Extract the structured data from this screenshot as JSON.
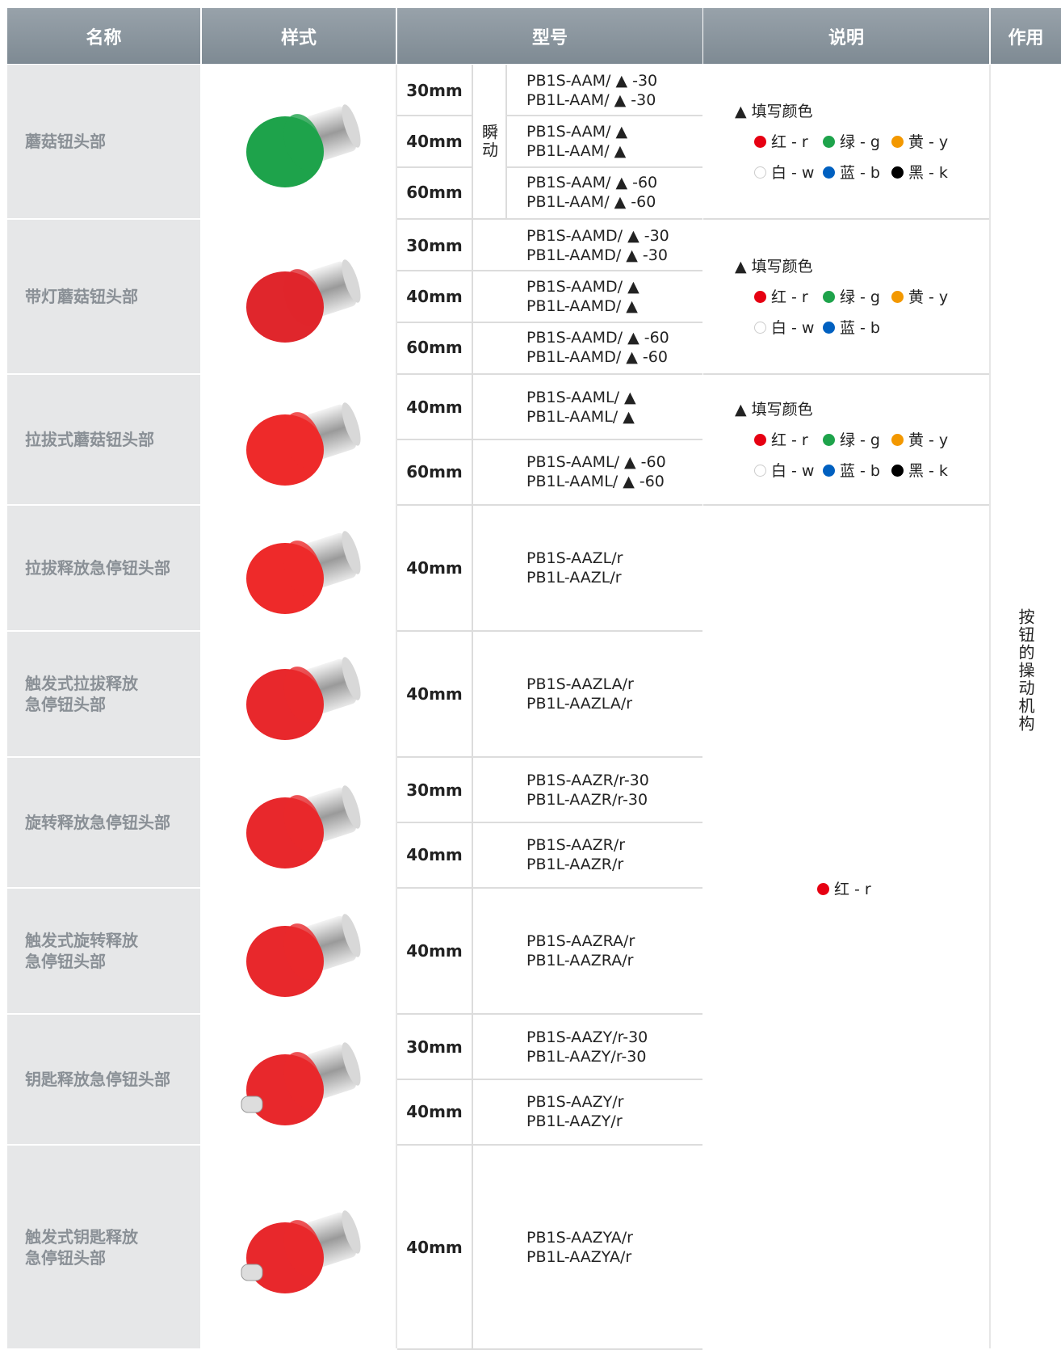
{
  "header": [
    "名称",
    "样式",
    "型号",
    "说明",
    "作用"
  ],
  "groups": [
    {
      "name": "蘑菇钮头部",
      "image_color": "#1ea34b",
      "mode": "瞬动",
      "variants": [
        {
          "size": "30mm",
          "models": [
            "PB1S-AAM/ ▲ -30",
            "PB1L-AAM/ ▲ -30"
          ]
        },
        {
          "size": "40mm",
          "models": [
            "PB1S-AAM/ ▲",
            "PB1L-AAM/ ▲"
          ]
        },
        {
          "size": "60mm",
          "models": [
            "PB1S-AAM/ ▲ -60",
            "PB1L-AAM/ ▲ -60"
          ]
        }
      ],
      "note": {
        "title": "▲ 填写颜色",
        "colors": [
          [
            {
              "color": "#e60012",
              "label": "红 - r"
            },
            {
              "color": "#1ea34b",
              "label": "绿 - g"
            },
            {
              "color": "#f39800",
              "label": "黄 - y"
            }
          ],
          [
            {
              "color": "#ffffff",
              "label": "白 - w"
            },
            {
              "color": "#0060c0",
              "label": "蓝 - b"
            },
            {
              "color": "#000000",
              "label": "黑 - k"
            }
          ]
        ]
      }
    },
    {
      "name": "带灯蘑菇钮头部",
      "image_color": "#e0262c",
      "variants": [
        {
          "size": "30mm",
          "models": [
            "PB1S-AAMD/ ▲ -30",
            "PB1L-AAMD/ ▲ -30"
          ]
        },
        {
          "size": "40mm",
          "models": [
            "PB1S-AAMD/ ▲",
            "PB1L-AAMD/ ▲"
          ]
        },
        {
          "size": "60mm",
          "models": [
            "PB1S-AAMD/ ▲ -60",
            "PB1L-AAMD/ ▲ -60"
          ]
        }
      ],
      "note": {
        "title": "▲ 填写颜色",
        "colors": [
          [
            {
              "color": "#e60012",
              "label": "红 - r"
            },
            {
              "color": "#1ea34b",
              "label": "绿 - g"
            },
            {
              "color": "#f39800",
              "label": "黄 - y"
            }
          ],
          [
            {
              "color": "#ffffff",
              "label": "白 - w"
            },
            {
              "color": "#0060c0",
              "label": "蓝 - b"
            }
          ]
        ]
      }
    },
    {
      "name": "拉拔式蘑菇钮头部",
      "image_color": "#ee2a2a",
      "variants": [
        {
          "size": "40mm",
          "models": [
            "PB1S-AAML/ ▲",
            "PB1L-AAML/ ▲"
          ]
        },
        {
          "size": "60mm",
          "models": [
            "PB1S-AAML/ ▲ -60",
            "PB1L-AAML/ ▲ -60"
          ]
        }
      ],
      "note": {
        "title": "▲ 填写颜色",
        "colors": [
          [
            {
              "color": "#e60012",
              "label": "红 - r"
            },
            {
              "color": "#1ea34b",
              "label": "绿 - g"
            },
            {
              "color": "#f39800",
              "label": "黄 - y"
            }
          ],
          [
            {
              "color": "#ffffff",
              "label": "白 - w"
            },
            {
              "color": "#0060c0",
              "label": "蓝 - b"
            },
            {
              "color": "#000000",
              "label": "黑 - k"
            }
          ]
        ]
      }
    },
    {
      "name": "拉拔释放急停钮头部",
      "image_color": "#ee2a2a",
      "variants": [
        {
          "size": "40mm",
          "models": [
            "PB1S-AAZL/r",
            "PB1L-AAZL/r"
          ]
        }
      ]
    },
    {
      "name": "触发式拉拔释放\n急停钮头部",
      "image_color": "#e8282c",
      "variants": [
        {
          "size": "40mm",
          "models": [
            "PB1S-AAZLA/r",
            "PB1L-AAZLA/r"
          ]
        }
      ]
    },
    {
      "name": "旋转释放急停钮头部",
      "image_color": "#e8282c",
      "variants": [
        {
          "size": "30mm",
          "models": [
            "PB1S-AAZR/r-30",
            "PB1L-AAZR/r-30"
          ]
        },
        {
          "size": "40mm",
          "models": [
            "PB1S-AAZR/r",
            "PB1L-AAZR/r"
          ]
        }
      ]
    },
    {
      "name": "触发式旋转释放\n急停钮头部",
      "image_color": "#e8282c",
      "variants": [
        {
          "size": "40mm",
          "models": [
            "PB1S-AAZRA/r",
            "PB1L-AAZRA/r"
          ]
        }
      ]
    },
    {
      "name": "钥匙释放急停钮头部",
      "image_color": "#e8282c",
      "variants": [
        {
          "size": "30mm",
          "models": [
            "PB1S-AAZY/r-30",
            "PB1L-AAZY/r-30"
          ]
        },
        {
          "size": "40mm",
          "models": [
            "PB1S-AAZY/r",
            "PB1L-AAZY/r"
          ]
        }
      ]
    },
    {
      "name": "触发式钥匙释放\n急停钮头部",
      "image_color": "#e8282c",
      "variants": [
        {
          "size": "40mm",
          "models": [
            "PB1S-AAZYA/r",
            "PB1L-AAZYA/r"
          ]
        }
      ]
    }
  ],
  "shared_note": {
    "colors": [
      {
        "color": "#e60012",
        "label": "红 - r"
      }
    ]
  },
  "function": "按钮的操动机构"
}
